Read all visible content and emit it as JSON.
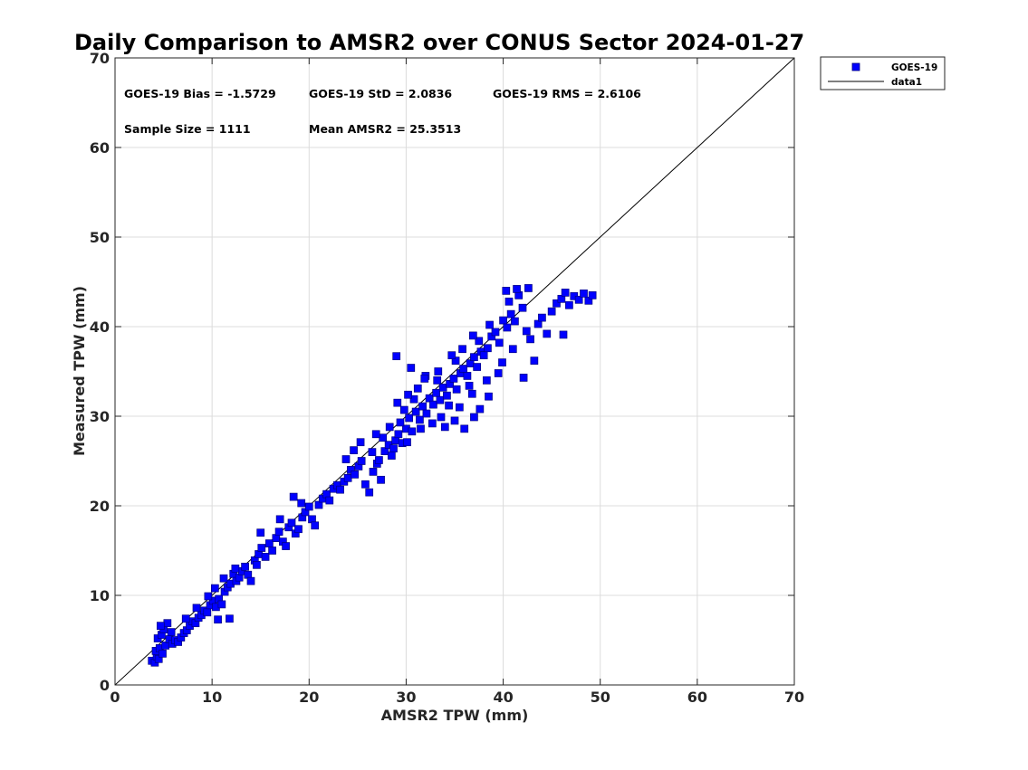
{
  "chart_data": {
    "type": "scatter",
    "title": "Daily Comparison to AMSR2 over CONUS Sector 2024-01-27",
    "xlabel": "AMSR2 TPW (mm)",
    "ylabel": "Measured TPW (mm)",
    "xlim": [
      0,
      70
    ],
    "ylim": [
      0,
      70
    ],
    "xticks": [
      "0",
      "10",
      "20",
      "30",
      "40",
      "50",
      "60",
      "70"
    ],
    "yticks": [
      "0",
      "10",
      "20",
      "30",
      "40",
      "50",
      "60",
      "70"
    ],
    "grid": true,
    "legend_position": "outside-top-right",
    "stats": [
      "GOES-19 Bias = -1.5729",
      "GOES-19 StD = 2.0836",
      "GOES-19 RMS = 2.6106",
      "Sample Size = 1111",
      "Mean AMSR2 = 25.3513"
    ],
    "series": [
      {
        "name": "GOES-19",
        "kind": "scatter",
        "marker": "square",
        "color": "#0000ff",
        "edge_color": "#000080",
        "points": [
          [
            3.8,
            2.7
          ],
          [
            4.1,
            2.5
          ],
          [
            4.3,
            3.2
          ],
          [
            4.5,
            2.9
          ],
          [
            4.2,
            3.8
          ],
          [
            4.6,
            4.1
          ],
          [
            4.9,
            3.5
          ],
          [
            5.2,
            4.4
          ],
          [
            4.4,
            5.2
          ],
          [
            4.8,
            5.6
          ],
          [
            5.0,
            6.2
          ],
          [
            5.4,
            6.9
          ],
          [
            4.7,
            6.6
          ],
          [
            5.6,
            5.1
          ],
          [
            5.9,
            4.6
          ],
          [
            6.2,
            5.0
          ],
          [
            6.5,
            4.8
          ],
          [
            5.8,
            5.9
          ],
          [
            6.8,
            5.3
          ],
          [
            7.1,
            5.8
          ],
          [
            7.4,
            6.1
          ],
          [
            7.7,
            6.6
          ],
          [
            8.0,
            7.1
          ],
          [
            7.3,
            7.4
          ],
          [
            8.3,
            6.9
          ],
          [
            8.6,
            7.5
          ],
          [
            8.9,
            7.8
          ],
          [
            9.2,
            8.3
          ],
          [
            8.4,
            8.6
          ],
          [
            9.5,
            8.1
          ],
          [
            9.8,
            8.9
          ],
          [
            10.1,
            9.4
          ],
          [
            9.6,
            9.9
          ],
          [
            10.4,
            8.7
          ],
          [
            10.7,
            9.6
          ],
          [
            11.0,
            9.0
          ],
          [
            10.3,
            10.8
          ],
          [
            11.3,
            10.4
          ],
          [
            11.6,
            10.9
          ],
          [
            11.9,
            11.3
          ],
          [
            11.2,
            11.9
          ],
          [
            12.2,
            12.4
          ],
          [
            12.5,
            11.6
          ],
          [
            12.8,
            12.0
          ],
          [
            13.1,
            12.7
          ],
          [
            13.4,
            13.2
          ],
          [
            12.4,
            13.0
          ],
          [
            11.8,
            7.4
          ],
          [
            10.6,
            7.3
          ],
          [
            13.7,
            12.3
          ],
          [
            14.0,
            11.6
          ],
          [
            14.4,
            13.9
          ],
          [
            14.8,
            14.6
          ],
          [
            15.1,
            15.3
          ],
          [
            14.6,
            13.4
          ],
          [
            15.5,
            14.3
          ],
          [
            15.9,
            15.8
          ],
          [
            16.2,
            15.0
          ],
          [
            16.6,
            16.4
          ],
          [
            15.0,
            17.0
          ],
          [
            16.9,
            17.1
          ],
          [
            17.3,
            16.0
          ],
          [
            17.6,
            15.5
          ],
          [
            17.9,
            17.6
          ],
          [
            18.2,
            18.1
          ],
          [
            17.0,
            18.5
          ],
          [
            18.6,
            16.9
          ],
          [
            18.9,
            17.4
          ],
          [
            19.3,
            18.7
          ],
          [
            19.6,
            19.3
          ],
          [
            20.0,
            19.9
          ],
          [
            19.2,
            20.3
          ],
          [
            20.3,
            18.5
          ],
          [
            20.6,
            17.8
          ],
          [
            21.0,
            20.1
          ],
          [
            21.4,
            20.8
          ],
          [
            18.4,
            21.0
          ],
          [
            21.8,
            21.3
          ],
          [
            22.1,
            20.6
          ],
          [
            22.5,
            21.9
          ],
          [
            22.9,
            22.3
          ],
          [
            23.2,
            21.8
          ],
          [
            23.6,
            22.7
          ],
          [
            24.0,
            23.1
          ],
          [
            24.3,
            24.0
          ],
          [
            23.8,
            25.2
          ],
          [
            24.7,
            23.5
          ],
          [
            25.1,
            24.4
          ],
          [
            25.4,
            25.0
          ],
          [
            25.8,
            22.4
          ],
          [
            26.2,
            21.5
          ],
          [
            26.6,
            23.8
          ],
          [
            27.0,
            24.7
          ],
          [
            27.4,
            22.9
          ],
          [
            27.8,
            26.1
          ],
          [
            28.2,
            26.8
          ],
          [
            27.6,
            27.6
          ],
          [
            28.5,
            25.6
          ],
          [
            28.9,
            27.3
          ],
          [
            29.2,
            28.0
          ],
          [
            29.6,
            27.0
          ],
          [
            30.0,
            28.6
          ],
          [
            29.4,
            29.3
          ],
          [
            30.3,
            29.8
          ],
          [
            30.6,
            28.3
          ],
          [
            31.0,
            30.5
          ],
          [
            31.4,
            29.6
          ],
          [
            31.7,
            31.1
          ],
          [
            30.8,
            31.9
          ],
          [
            32.1,
            30.3
          ],
          [
            32.4,
            32.0
          ],
          [
            32.8,
            31.3
          ],
          [
            33.1,
            32.6
          ],
          [
            33.5,
            31.8
          ],
          [
            33.8,
            33.2
          ],
          [
            33.2,
            34.0
          ],
          [
            34.2,
            32.3
          ],
          [
            34.5,
            33.6
          ],
          [
            34.9,
            34.2
          ],
          [
            35.2,
            33.0
          ],
          [
            35.6,
            34.8
          ],
          [
            35.9,
            35.3
          ],
          [
            35.1,
            36.2
          ],
          [
            36.3,
            34.5
          ],
          [
            36.6,
            35.9
          ],
          [
            37.0,
            36.6
          ],
          [
            37.3,
            35.5
          ],
          [
            37.7,
            37.2
          ],
          [
            38.0,
            36.8
          ],
          [
            37.5,
            38.4
          ],
          [
            38.4,
            37.6
          ],
          [
            38.8,
            38.9
          ],
          [
            39.2,
            39.4
          ],
          [
            38.6,
            40.2
          ],
          [
            39.6,
            38.2
          ],
          [
            40.0,
            40.7
          ],
          [
            40.4,
            39.9
          ],
          [
            40.8,
            41.4
          ],
          [
            41.2,
            40.6
          ],
          [
            40.6,
            42.8
          ],
          [
            41.6,
            43.5
          ],
          [
            42.0,
            42.1
          ],
          [
            42.4,
            39.5
          ],
          [
            42.8,
            38.6
          ],
          [
            43.2,
            36.2
          ],
          [
            42.1,
            34.3
          ],
          [
            43.6,
            40.3
          ],
          [
            44.0,
            41.0
          ],
          [
            44.5,
            39.2
          ],
          [
            45.0,
            41.7
          ],
          [
            45.5,
            42.6
          ],
          [
            46.0,
            43.1
          ],
          [
            46.4,
            43.8
          ],
          [
            46.8,
            42.4
          ],
          [
            47.3,
            43.4
          ],
          [
            47.8,
            43.0
          ],
          [
            48.3,
            43.7
          ],
          [
            48.8,
            42.9
          ],
          [
            49.2,
            43.5
          ],
          [
            46.2,
            39.1
          ],
          [
            28.3,
            28.8
          ],
          [
            29.1,
            31.5
          ],
          [
            30.2,
            32.4
          ],
          [
            31.2,
            33.1
          ],
          [
            32.0,
            34.5
          ],
          [
            30.5,
            35.4
          ],
          [
            29.0,
            36.7
          ],
          [
            32.7,
            29.2
          ],
          [
            34.0,
            28.8
          ],
          [
            35.0,
            29.5
          ],
          [
            36.0,
            28.6
          ],
          [
            37.0,
            29.9
          ],
          [
            37.6,
            30.8
          ],
          [
            38.5,
            32.2
          ],
          [
            39.5,
            34.8
          ],
          [
            36.8,
            32.5
          ],
          [
            35.5,
            31.0
          ],
          [
            33.6,
            29.9
          ],
          [
            31.5,
            28.6
          ],
          [
            30.1,
            27.1
          ],
          [
            41.0,
            37.5
          ],
          [
            39.9,
            36.0
          ],
          [
            38.3,
            34.0
          ],
          [
            36.5,
            33.4
          ],
          [
            34.4,
            31.2
          ],
          [
            40.3,
            44.0
          ],
          [
            41.4,
            44.2
          ],
          [
            42.6,
            44.3
          ],
          [
            26.5,
            26.0
          ],
          [
            27.2,
            25.1
          ],
          [
            28.7,
            26.4
          ],
          [
            25.3,
            27.1
          ],
          [
            24.6,
            26.2
          ],
          [
            26.9,
            28.0
          ],
          [
            29.8,
            30.7
          ],
          [
            31.9,
            34.2
          ],
          [
            33.3,
            35.0
          ],
          [
            34.7,
            36.8
          ],
          [
            35.8,
            37.5
          ],
          [
            36.9,
            39.0
          ]
        ]
      },
      {
        "name": "data1",
        "kind": "line",
        "color": "#000000",
        "points": [
          [
            0,
            0
          ],
          [
            70,
            70
          ]
        ]
      }
    ]
  }
}
